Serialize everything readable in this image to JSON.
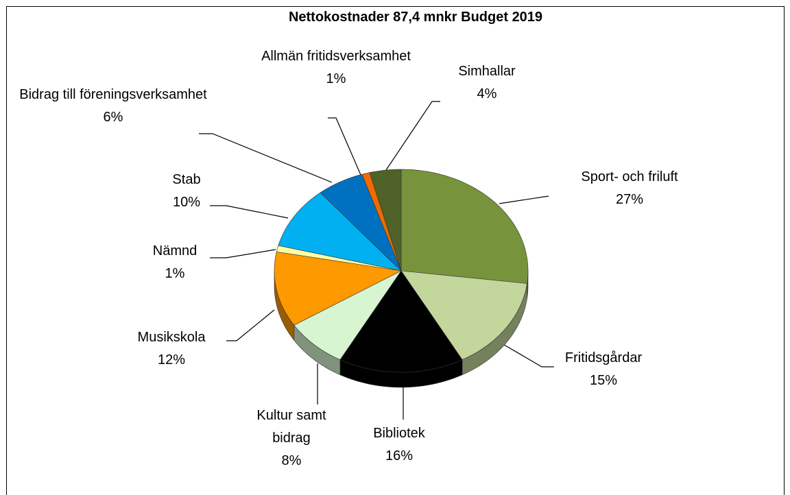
{
  "chart_data": {
    "type": "pie",
    "title": "Nettokostnader 87,4 mnkr Budget 2019",
    "categories": [
      "Sport- och friluft",
      "Fritidsgårdar",
      "Bibliotek",
      "Kultur samt bidrag",
      "Musikskola",
      "Nämnd",
      "Stab",
      "Bidrag till föreningsverksamhet",
      "Allmän fritidsverksamhet",
      "Simhallar"
    ],
    "values": [
      27,
      15,
      16,
      8,
      12,
      1,
      10,
      6,
      1,
      4
    ],
    "value_labels": [
      "27%",
      "15%",
      "16%",
      "8%",
      "12%",
      "1%",
      "10%",
      "6%",
      "1%",
      "4%"
    ],
    "colors": [
      "#77933c",
      "#c3d69b",
      "#000000",
      "#d6f5d0",
      "#ff9900",
      "#ffffa8",
      "#00b0f0",
      "#0070c0",
      "#f06a00",
      "#4f6228"
    ]
  }
}
